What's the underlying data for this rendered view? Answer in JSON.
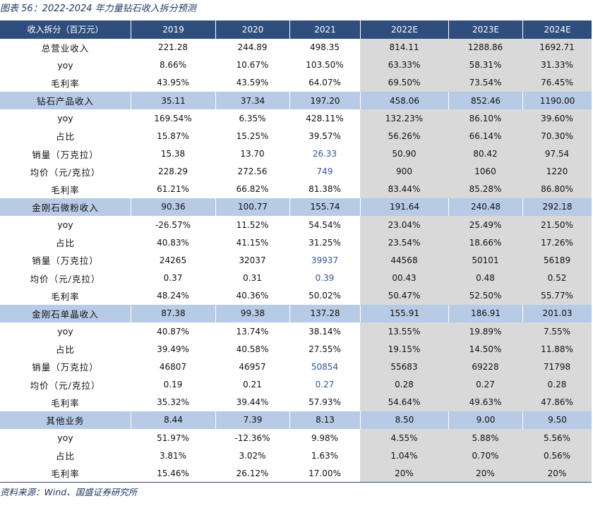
{
  "colors": {
    "header_bg": "#2F4D7D",
    "section_bg": "#B7CAE6",
    "forecast_bg": "#D9D9D9",
    "highlight_text": "#2F5597",
    "caption_text": "#1F3864"
  },
  "chart_data": {
    "type": "table",
    "title": "图表 56：2022-2024 年力量钻石收入拆分预测",
    "corner_label": "收入拆分（百万元）",
    "columns": [
      {
        "label": "2019",
        "shaded": false
      },
      {
        "label": "2020",
        "shaded": false
      },
      {
        "label": "2021",
        "shaded": false
      },
      {
        "label": "2022E",
        "shaded": true
      },
      {
        "label": "2023E",
        "shaded": true
      },
      {
        "label": "2024E",
        "shaded": true
      }
    ],
    "rows": [
      {
        "label": "总营业收入",
        "section": false,
        "values": [
          "221.28",
          "244.89",
          "498.35",
          "814.11",
          "1288.86",
          "1692.71"
        ]
      },
      {
        "label": "yoy",
        "section": false,
        "values": [
          "8.66%",
          "10.67%",
          "103.50%",
          "63.33%",
          "58.31%",
          "31.33%"
        ]
      },
      {
        "label": "毛利率",
        "section": false,
        "values": [
          "43.95%",
          "43.59%",
          "64.07%",
          "69.50%",
          "73.54%",
          "76.45%"
        ]
      },
      {
        "label": "钻石产品收入",
        "section": true,
        "values": [
          "35.11",
          "37.34",
          "197.20",
          "458.06",
          "852.46",
          "1190.00"
        ]
      },
      {
        "label": "yoy",
        "section": false,
        "values": [
          "169.54%",
          "6.35%",
          "428.11%",
          "132.23%",
          "86.10%",
          "39.60%"
        ]
      },
      {
        "label": "占比",
        "section": false,
        "values": [
          "15.87%",
          "15.25%",
          "39.57%",
          "56.26%",
          "66.14%",
          "70.30%"
        ]
      },
      {
        "label": "销量（万克拉）",
        "section": false,
        "values": [
          "15.38",
          "13.70",
          "26.33",
          "50.90",
          "80.42",
          "97.54"
        ],
        "highlight": [
          2
        ]
      },
      {
        "label": "均价（元/克拉）",
        "section": false,
        "values": [
          "228.29",
          "272.56",
          "749",
          "900",
          "1060",
          "1220"
        ],
        "highlight": [
          2
        ]
      },
      {
        "label": "毛利率",
        "section": false,
        "values": [
          "61.21%",
          "66.82%",
          "81.38%",
          "83.44%",
          "85.28%",
          "86.80%"
        ]
      },
      {
        "label": "金刚石微粉收入",
        "section": true,
        "values": [
          "90.36",
          "100.77",
          "155.74",
          "191.64",
          "240.48",
          "292.18"
        ]
      },
      {
        "label": "yoy",
        "section": false,
        "values": [
          "-26.57%",
          "11.52%",
          "54.54%",
          "23.04%",
          "25.49%",
          "21.50%"
        ]
      },
      {
        "label": "占比",
        "section": false,
        "values": [
          "40.83%",
          "41.15%",
          "31.25%",
          "23.54%",
          "18.66%",
          "17.26%"
        ]
      },
      {
        "label": "销量（万克拉）",
        "section": false,
        "values": [
          "24265",
          "32037",
          "39937",
          "44568",
          "50101",
          "56189"
        ],
        "highlight": [
          2
        ]
      },
      {
        "label": "均价（元/克拉）",
        "section": false,
        "values": [
          "0.37",
          "0.31",
          "0.39",
          "00.43",
          "0.48",
          "0.52"
        ],
        "highlight": [
          2
        ]
      },
      {
        "label": "毛利率",
        "section": false,
        "values": [
          "48.24%",
          "40.36%",
          "50.02%",
          "50.47%",
          "52.50%",
          "55.77%"
        ]
      },
      {
        "label": "金刚石单晶收入",
        "section": true,
        "values": [
          "87.38",
          "99.38",
          "137.28",
          "155.91",
          "186.91",
          "201.03"
        ]
      },
      {
        "label": "yoy",
        "section": false,
        "values": [
          "40.87%",
          "13.74%",
          "38.14%",
          "13.55%",
          "19.89%",
          "7.55%"
        ]
      },
      {
        "label": "占比",
        "section": false,
        "values": [
          "39.49%",
          "40.58%",
          "27.55%",
          "19.15%",
          "14.50%",
          "11.88%"
        ]
      },
      {
        "label": "销量（万克拉）",
        "section": false,
        "values": [
          "46807",
          "46957",
          "50854",
          "55683",
          "69228",
          "71798"
        ],
        "highlight": [
          2
        ]
      },
      {
        "label": "均价（元/克拉）",
        "section": false,
        "values": [
          "0.19",
          "0.21",
          "0.27",
          "0.28",
          "0.27",
          "0.28"
        ],
        "highlight": [
          2
        ]
      },
      {
        "label": "毛利率",
        "section": false,
        "values": [
          "35.32%",
          "39.44%",
          "57.93%",
          "54.64%",
          "49.63%",
          "47.86%"
        ]
      },
      {
        "label": "其他业务",
        "section": true,
        "values": [
          "8.44",
          "7.39",
          "8.13",
          "8.50",
          "9.00",
          "9.50"
        ]
      },
      {
        "label": "yoy",
        "section": false,
        "values": [
          "51.97%",
          "-12.36%",
          "9.98%",
          "4.55%",
          "5.88%",
          "5.56%"
        ]
      },
      {
        "label": "占比",
        "section": false,
        "values": [
          "3.81%",
          "3.02%",
          "1.63%",
          "1.04%",
          "0.70%",
          "0.56%"
        ]
      },
      {
        "label": "毛利率",
        "section": false,
        "values": [
          "15.46%",
          "26.12%",
          "17.00%",
          "20%",
          "20%",
          "20%"
        ]
      }
    ],
    "source": "资料来源：Wind、国盛证券研究所"
  }
}
